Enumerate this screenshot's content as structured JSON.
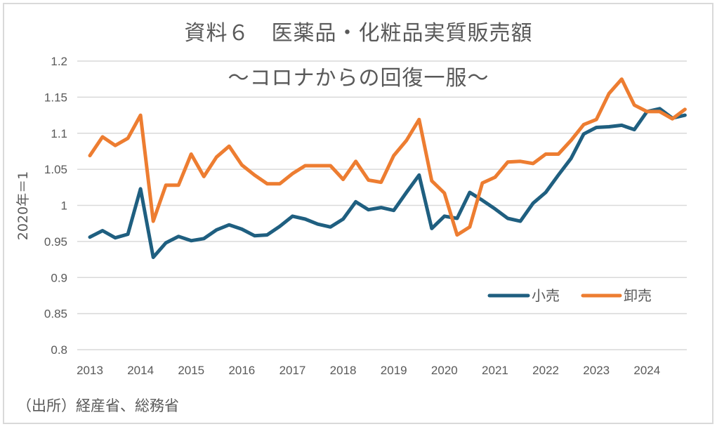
{
  "chart_data": {
    "type": "line",
    "title": "資料６　医薬品・化粧品実質販売額",
    "subtitle": "～コロナからの回復一服～",
    "xlabel": "",
    "ylabel": "2020年＝1",
    "source": "（出所）経産省、総務省",
    "ylim": [
      0.8,
      1.2
    ],
    "yticks": [
      1.2,
      1.15,
      1.1,
      1.05,
      1,
      0.95,
      0.9,
      0.85,
      0.8
    ],
    "ytick_labels": [
      "1.2",
      "1.15",
      "1.1",
      "1.05",
      "1",
      "0.95",
      "0.9",
      "0.85",
      "0.8"
    ],
    "xtick_labels": [
      "2013",
      "2014",
      "2015",
      "2016",
      "2017",
      "2018",
      "2019",
      "2020",
      "2021",
      "2022",
      "2023",
      "2024"
    ],
    "x_frequency": "quarterly",
    "x_start": "2013Q1",
    "x_end": "2024Q4",
    "grid": "horizontal",
    "legend_position": "bottom-right",
    "series": [
      {
        "name": "小売",
        "color": "#1f5f80",
        "values": [
          0.956,
          0.965,
          0.955,
          0.96,
          1.023,
          0.928,
          0.948,
          0.957,
          0.951,
          0.954,
          0.966,
          0.973,
          0.967,
          0.958,
          0.959,
          0.971,
          0.985,
          0.981,
          0.974,
          0.97,
          0.981,
          1.005,
          0.994,
          0.997,
          0.993,
          1.018,
          1.042,
          0.968,
          0.985,
          0.982,
          1.018,
          1.007,
          0.995,
          0.982,
          0.978,
          1.003,
          1.018,
          1.042,
          1.065,
          1.099,
          1.108,
          1.109,
          1.111,
          1.105,
          1.13,
          1.134,
          1.121,
          1.125
        ]
      },
      {
        "name": "卸売",
        "color": "#ed7d31",
        "values": [
          1.069,
          1.095,
          1.083,
          1.093,
          1.125,
          0.978,
          1.028,
          1.028,
          1.071,
          1.04,
          1.067,
          1.082,
          1.056,
          1.042,
          1.03,
          1.03,
          1.044,
          1.055,
          1.055,
          1.055,
          1.036,
          1.061,
          1.035,
          1.032,
          1.069,
          1.09,
          1.119,
          1.034,
          1.017,
          0.959,
          0.97,
          1.031,
          1.039,
          1.06,
          1.061,
          1.058,
          1.071,
          1.071,
          1.09,
          1.112,
          1.119,
          1.155,
          1.175,
          1.139,
          1.13,
          1.13,
          1.12,
          1.133
        ]
      }
    ]
  }
}
